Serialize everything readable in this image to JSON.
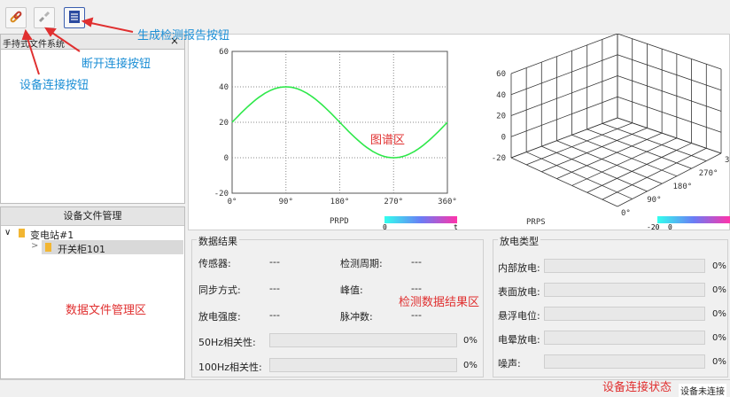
{
  "toolbar": {
    "connect_icon": "link-icon",
    "disconnect_icon": "unlink-icon",
    "report_icon": "report-icon"
  },
  "callouts": {
    "report": "生成检测报告按钮",
    "disconnect": "断开连接按钮",
    "connect": "设备连接按钮",
    "chart_area": "图谱区",
    "file_area": "数据文件管理区",
    "result_area": "检测数据结果区",
    "status_area": "设备连接状态"
  },
  "handheld_panel": {
    "title": "手持式文件系统",
    "close": "×"
  },
  "device_files": {
    "title": "设备文件管理",
    "tree": [
      {
        "label": "变电站#1",
        "toggle": "∨"
      },
      {
        "label": "开关柜101",
        "toggle": ">"
      }
    ]
  },
  "chart_data": [
    {
      "type": "line",
      "name": "PRPD",
      "x": [
        0,
        45,
        90,
        135,
        180,
        225,
        270,
        315,
        360
      ],
      "values": [
        20,
        34.1,
        40,
        34.1,
        20,
        5.9,
        0,
        5.9,
        20
      ],
      "xticks": [
        "0°",
        "90°",
        "180°",
        "270°",
        "360°"
      ],
      "yticks": [
        "-20",
        "0",
        "20",
        "40",
        "60"
      ],
      "xlim": [
        0,
        360
      ],
      "ylim": [
        -20,
        60
      ],
      "grid": true,
      "colorbar": {
        "min": "0",
        "max": "t"
      },
      "line_color": "#2ee84a"
    },
    {
      "type": "other",
      "name": "PRPS",
      "zticks": [
        "-20",
        "0",
        "20",
        "40",
        "60"
      ],
      "phase_ticks": [
        "0°",
        "90°",
        "180°",
        "270°",
        "360°"
      ],
      "colorbar": {
        "min": "-20",
        "max": "0"
      }
    }
  ],
  "results": {
    "title": "数据结果",
    "sensor_label": "传感器:",
    "sensor_value": "---",
    "period_label": "检测周期:",
    "period_value": "---",
    "sync_label": "同步方式:",
    "sync_value": "---",
    "peak_label": "峰值:",
    "peak_value": "---",
    "intensity_label": "放电强度:",
    "intensity_value": "---",
    "pulse_label": "脉冲数:",
    "pulse_value": "---",
    "corr50_label": "50Hz相关性:",
    "corr50_value": "0%",
    "corr100_label": "100Hz相关性:",
    "corr100_value": "0%"
  },
  "discharge": {
    "title": "放电类型",
    "items": [
      {
        "label": "内部放电:",
        "value": "0%"
      },
      {
        "label": "表面放电:",
        "value": "0%"
      },
      {
        "label": "悬浮电位:",
        "value": "0%"
      },
      {
        "label": "电晕放电:",
        "value": "0%"
      },
      {
        "label": "噪声:",
        "value": "0%"
      }
    ]
  },
  "status": {
    "text": "设备未连接"
  },
  "colors": {
    "accent_blue": "#1c8fd6",
    "callout_red": "#e03030",
    "sine": "#2ee84a"
  }
}
